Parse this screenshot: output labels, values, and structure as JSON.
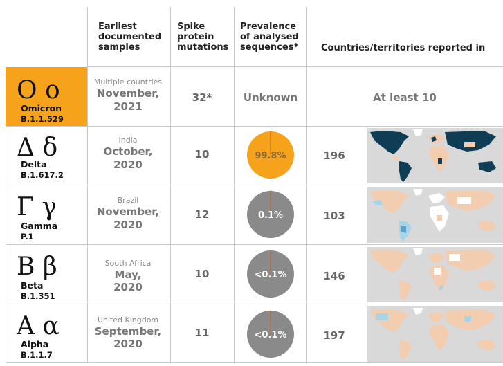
{
  "headers": {
    "samples": [
      "Earliest",
      "documented",
      "samples"
    ],
    "spike": [
      "Spike",
      "protein",
      "mutations"
    ],
    "prevalence": [
      "Prevalence",
      "of analysed",
      "sequences*"
    ],
    "countries": "Countries/territories reported in"
  },
  "colors": {
    "highlight": "#f7a21b",
    "pie_high": "#f7a21b",
    "pie_low": "#8a8a8a",
    "map_ocean": "#d9d9d9",
    "map_land": "#f2cdb0",
    "map_dark": "#0f3d56",
    "map_light_blue": "#a9d4e8",
    "map_mid_blue": "#5aa3cf"
  },
  "variants": [
    {
      "greek": "Ο ο",
      "name": "Omicron",
      "code": "B.1.1.529",
      "origin": "Multiple countries",
      "date_month": "November,",
      "date_year": "2021",
      "spike": "32*",
      "prevalence": "Unknown",
      "countries": "At least 10"
    },
    {
      "greek": "Δ δ",
      "name": "Delta",
      "code": "B.1.617.2",
      "origin": "India",
      "date_month": "October,",
      "date_year": "2020",
      "spike": "10",
      "prevalence": "99.8%",
      "prevalence_value": 99.8,
      "countries": "196"
    },
    {
      "greek": "Γ γ",
      "name": "Gamma",
      "code": "P.1",
      "origin": "Brazil",
      "date_month": "November,",
      "date_year": "2020",
      "spike": "12",
      "prevalence": "0.1%",
      "prevalence_value": 0.1,
      "countries": "103"
    },
    {
      "greek": "Β β",
      "name": "Beta",
      "code": "B.1.351",
      "origin": "South Africa",
      "date_month": "May,",
      "date_year": "2020",
      "spike": "10",
      "prevalence": "<0.1%",
      "prevalence_value": 0.05,
      "countries": "146"
    },
    {
      "greek": "Α α",
      "name": "Alpha",
      "code": "B.1.1.7",
      "origin": "United Kingdom",
      "date_month": "September,",
      "date_year": "2020",
      "spike": "11",
      "prevalence": "<0.1%",
      "prevalence_value": 0.05,
      "countries": "197"
    }
  ]
}
